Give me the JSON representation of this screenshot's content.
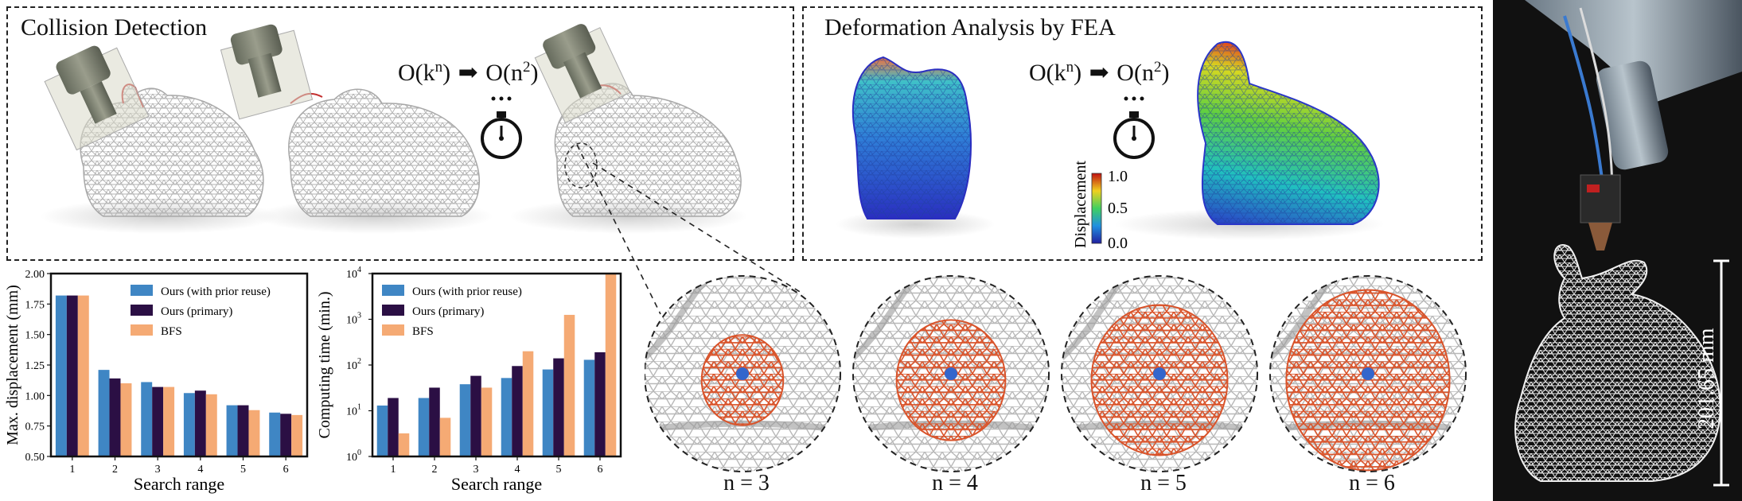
{
  "panels": {
    "collision": {
      "title": "Collision Detection",
      "complexity": {
        "before": "O(k",
        "before_sup": "n",
        "after": "O(n",
        "after_sup": "2",
        "close": ")",
        "arrow": "➡"
      }
    },
    "fea": {
      "title": "Deformation Analysis by FEA",
      "complexity": {
        "before": "O(k",
        "before_sup": "n",
        "after": "O(n",
        "after_sup": "2",
        "close": ")",
        "arrow": "➡"
      },
      "colorbar": {
        "label": "Displacement",
        "ticks": [
          "1.0",
          "0.5",
          "0.0"
        ]
      }
    }
  },
  "colors": {
    "ours_prior": "#3f86c4",
    "ours_primary": "#2b0f44",
    "bfs": "#f5aa74",
    "mesh": "#b8b8b8",
    "highlight": "#d9532a",
    "seed": "#3366cc"
  },
  "chart_data": [
    {
      "type": "bar",
      "xlabel": "Search range",
      "ylabel": "Max. displacement (mm)",
      "categories": [
        "1",
        "2",
        "3",
        "4",
        "5",
        "6"
      ],
      "ylim": [
        0.5,
        2.0
      ],
      "yticks": [
        "0.50",
        "0.75",
        "1.00",
        "1.25",
        "1.50",
        "1.75",
        "2.00"
      ],
      "legend_position": "top-right",
      "series": [
        {
          "name": "Ours (with prior reuse)",
          "values": [
            1.82,
            1.21,
            1.11,
            1.02,
            0.92,
            0.86
          ]
        },
        {
          "name": "Ours (primary)",
          "values": [
            1.82,
            1.14,
            1.07,
            1.04,
            0.92,
            0.85
          ]
        },
        {
          "name": "BFS",
          "values": [
            1.82,
            1.1,
            1.07,
            1.01,
            0.88,
            0.84
          ]
        }
      ]
    },
    {
      "type": "bar",
      "xlabel": "Search range",
      "ylabel": "Computing time (min.)",
      "categories": [
        "1",
        "2",
        "3",
        "4",
        "5",
        "6"
      ],
      "yscale": "log",
      "ylim": [
        1,
        10000
      ],
      "yticks": [
        "10",
        "10",
        "10",
        "10",
        "10"
      ],
      "ytick_exponents": [
        "0",
        "1",
        "2",
        "3",
        "4"
      ],
      "legend_position": "top-left",
      "series": [
        {
          "name": "Ours (with prior reuse)",
          "values": [
            13,
            19,
            38,
            52,
            80,
            130
          ]
        },
        {
          "name": "Ours (primary)",
          "values": [
            19,
            32,
            58,
            95,
            140,
            190
          ]
        },
        {
          "name": "BFS",
          "values": [
            3.2,
            7,
            32,
            200,
            1250,
            10000
          ]
        }
      ]
    }
  ],
  "zooms": [
    {
      "label": "n = 3",
      "rings": 2
    },
    {
      "label": "n = 4",
      "rings": 3
    },
    {
      "label": "n = 5",
      "rings": 4
    },
    {
      "label": "n = 6",
      "rings": 5
    }
  ],
  "photo": {
    "dimension": "201.65 mm"
  }
}
